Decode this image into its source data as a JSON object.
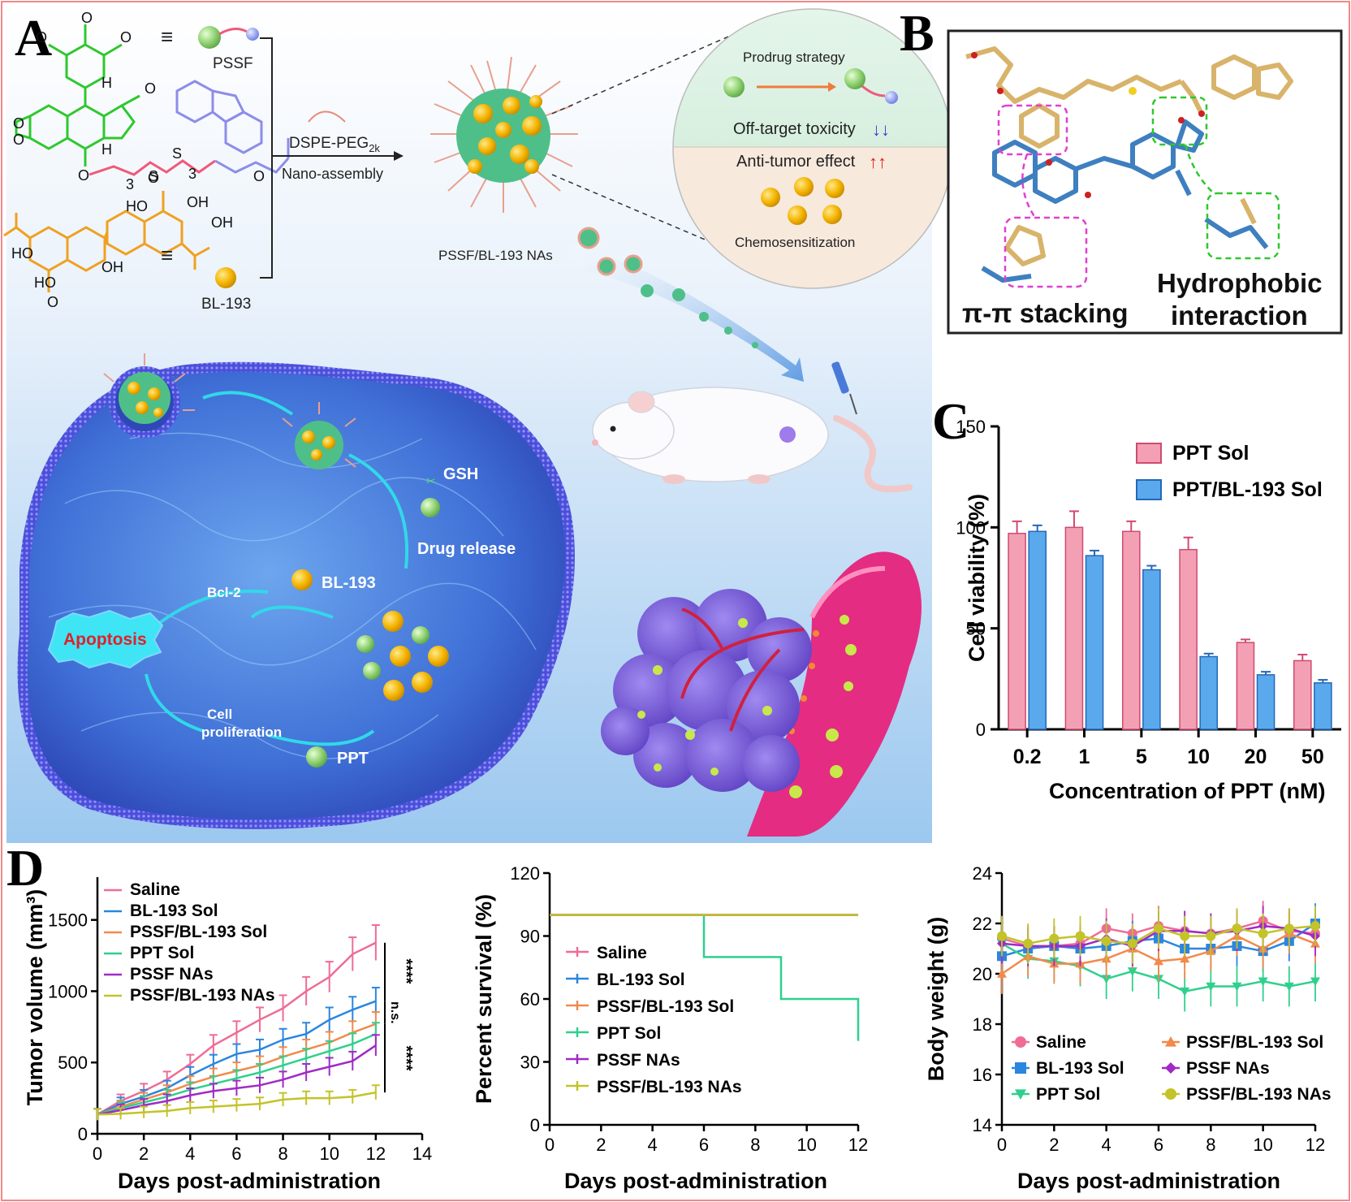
{
  "panel_labels": [
    "A",
    "B",
    "C",
    "D"
  ],
  "panelA": {
    "pssf_label": "PSSF",
    "bl193_label": "BL-193",
    "equiv_symbol": "≡",
    "chem_s": "S",
    "chem_o": "O",
    "chem_oh": "OH",
    "chem_ho": "HO",
    "chem_h": "H",
    "chem_3": "3",
    "dspe": "DSPE-PEG",
    "dspe_sub": "2k",
    "nano_assembly": "Nano-assembly",
    "nas_label": "PSSF/BL-193 NAs",
    "prodrug": "Prodrug strategy",
    "offtarget": "Off-target toxicity",
    "offtarget_arrows": "↓↓",
    "antitumor": "Anti-tumor effect",
    "antitumor_arrows": "↑↑",
    "chemosens": "Chemosensitization",
    "gsh": "GSH",
    "drug_release": "Drug release",
    "bcl2": "Bcl-2",
    "bl193_cell": "BL-193",
    "apoptosis": "Apoptosis",
    "cell_prolif_1": "Cell",
    "cell_prolif_2": "proliferation",
    "ppt": "PPT"
  },
  "panelB": {
    "pi_stacking": "π-π stacking",
    "hydrophobic_1": "Hydrophobic",
    "hydrophobic_2": "interaction"
  },
  "colors": {
    "pink": "#f4a0b4",
    "blue": "#5aa9ec",
    "saline": "#ef6c95",
    "bl193": "#2b86de",
    "pssf_bl193_sol": "#f28a4b",
    "ppt_sol": "#2fd08d",
    "pssf_nas": "#a12ac6",
    "pssf_bl193_nas": "#c3c32a"
  },
  "chart_data": [
    {
      "id": "C",
      "type": "bar",
      "title": "",
      "xlabel": "Concentration of PPT (nM)",
      "ylabel": "Cell viability (%)",
      "ylim": [
        0,
        150
      ],
      "yticks": [
        "0",
        "50",
        "100",
        "150"
      ],
      "categories": [
        "0.2",
        "1",
        "5",
        "10",
        "20",
        "50"
      ],
      "series": [
        {
          "name": "PPT Sol",
          "values": [
            97,
            100,
            98,
            89,
            43,
            34
          ],
          "errors": [
            6,
            8,
            5,
            6,
            1.5,
            3
          ]
        },
        {
          "name": "PPT/BL-193 Sol",
          "values": [
            98,
            86,
            79,
            36,
            27,
            23
          ],
          "errors": [
            3,
            2.5,
            2,
            1.5,
            1.5,
            1.5
          ]
        }
      ]
    },
    {
      "id": "D1",
      "type": "line",
      "xlabel": "Days post-administration",
      "ylabel": "Tumor volume (mm³)",
      "xlim": [
        0,
        14
      ],
      "ylim": [
        0,
        1800
      ],
      "xticks": [
        "0",
        "2",
        "4",
        "6",
        "8",
        "10",
        "12",
        "14"
      ],
      "yticks": [
        "0",
        "500",
        "1000",
        "1500"
      ],
      "x": [
        0,
        1,
        2,
        3,
        4,
        5,
        6,
        7,
        8,
        9,
        10,
        11,
        12
      ],
      "series": [
        {
          "name": "Saline",
          "values": [
            135,
            230,
            300,
            380,
            490,
            620,
            710,
            800,
            880,
            1000,
            1100,
            1260,
            1340
          ]
        },
        {
          "name": "BL-193 Sol",
          "values": [
            135,
            210,
            260,
            320,
            410,
            490,
            560,
            590,
            660,
            700,
            800,
            870,
            930
          ]
        },
        {
          "name": "PSSF/BL-193 Sol",
          "values": [
            135,
            190,
            240,
            290,
            350,
            400,
            440,
            480,
            540,
            590,
            640,
            710,
            770
          ]
        },
        {
          "name": "PPT Sol",
          "values": [
            135,
            180,
            220,
            260,
            310,
            350,
            390,
            430,
            480,
            530,
            580,
            630,
            700
          ]
        },
        {
          "name": "PSSF NAs",
          "values": [
            135,
            165,
            200,
            230,
            270,
            300,
            320,
            340,
            380,
            430,
            470,
            510,
            620
          ]
        },
        {
          "name": "PSSF/BL-193 NAs",
          "values": [
            135,
            140,
            150,
            160,
            180,
            190,
            200,
            210,
            240,
            250,
            250,
            260,
            290
          ]
        }
      ],
      "annotations": [
        "****",
        "n.s.",
        "****"
      ]
    },
    {
      "id": "D2",
      "type": "line",
      "xlabel": "Days post-administration",
      "ylabel": "Percent survival  (%)",
      "xlim": [
        0,
        12
      ],
      "ylim": [
        0,
        120
      ],
      "xticks": [
        "0",
        "2",
        "4",
        "6",
        "8",
        "10",
        "12"
      ],
      "yticks": [
        "0",
        "30",
        "60",
        "90",
        "120"
      ],
      "series": [
        {
          "name": "Saline",
          "steps": [
            [
              0,
              100
            ],
            [
              12,
              100
            ]
          ]
        },
        {
          "name": "BL-193 Sol",
          "steps": [
            [
              0,
              100
            ],
            [
              12,
              100
            ]
          ]
        },
        {
          "name": "PSSF/BL-193 Sol",
          "steps": [
            [
              0,
              100
            ],
            [
              12,
              100
            ]
          ]
        },
        {
          "name": "PPT Sol",
          "steps": [
            [
              0,
              100
            ],
            [
              6,
              100
            ],
            [
              6,
              80
            ],
            [
              9,
              80
            ],
            [
              9,
              60
            ],
            [
              12,
              60
            ],
            [
              12,
              40
            ]
          ]
        },
        {
          "name": "PSSF NAs",
          "steps": [
            [
              0,
              100
            ],
            [
              12,
              100
            ]
          ]
        },
        {
          "name": "PSSF/BL-193 NAs",
          "steps": [
            [
              0,
              100
            ],
            [
              12,
              100
            ]
          ]
        }
      ]
    },
    {
      "id": "D3",
      "type": "line",
      "xlabel": "Days post-administration",
      "ylabel": "Body weight (g)",
      "xlim": [
        0,
        12
      ],
      "ylim": [
        14,
        24
      ],
      "xticks": [
        "0",
        "2",
        "4",
        "6",
        "8",
        "10",
        "12"
      ],
      "yticks": [
        "14",
        "16",
        "18",
        "20",
        "22",
        "24"
      ],
      "x": [
        0,
        1,
        2,
        3,
        4,
        5,
        6,
        7,
        8,
        9,
        10,
        11,
        12
      ],
      "series": [
        {
          "name": "Saline",
          "values": [
            21.4,
            21.1,
            21.1,
            21.2,
            21.8,
            21.6,
            21.9,
            21.7,
            21.6,
            21.8,
            22.1,
            21.7,
            21.6
          ]
        },
        {
          "name": "BL-193 Sol",
          "values": [
            20.7,
            21.0,
            21.1,
            21.0,
            21.1,
            21.3,
            21.4,
            21.0,
            21.0,
            21.1,
            20.9,
            21.3,
            22.0
          ]
        },
        {
          "name": "PPT Sol",
          "values": [
            21.2,
            20.6,
            20.5,
            20.3,
            19.8,
            20.1,
            19.8,
            19.3,
            19.5,
            19.5,
            19.7,
            19.5,
            19.7
          ]
        },
        {
          "name": "PSSF/BL-193 Sol",
          "values": [
            20.0,
            20.7,
            20.4,
            20.4,
            20.6,
            21.0,
            20.5,
            20.6,
            20.9,
            21.5,
            21.0,
            21.6,
            21.2
          ]
        },
        {
          "name": "PSSF NAs",
          "values": [
            21.2,
            21.1,
            21.1,
            21.1,
            21.4,
            21.1,
            21.7,
            21.7,
            21.6,
            21.7,
            21.9,
            21.8,
            21.5
          ]
        },
        {
          "name": "PSSF/BL-193 NAs",
          "values": [
            21.5,
            21.2,
            21.4,
            21.5,
            21.3,
            21.2,
            21.8,
            21.5,
            21.5,
            21.8,
            21.6,
            21.8,
            21.9
          ]
        }
      ]
    }
  ]
}
